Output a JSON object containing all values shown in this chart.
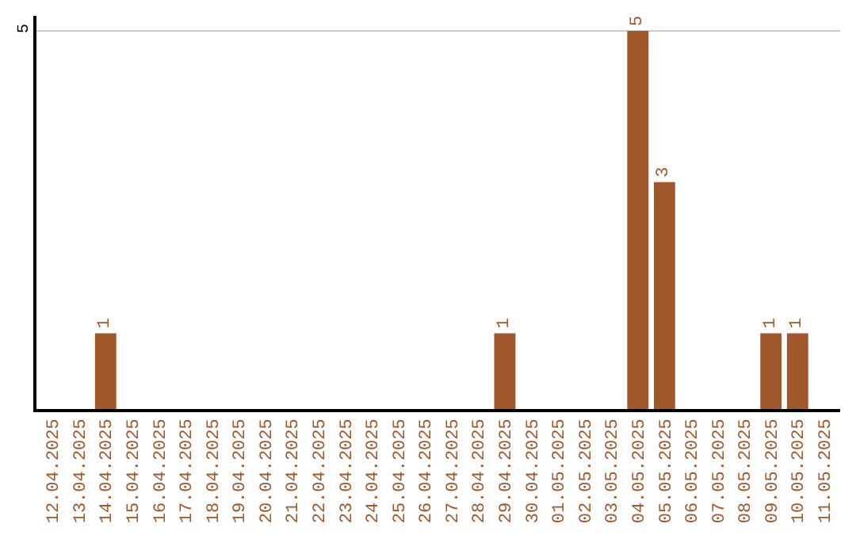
{
  "chart_data": {
    "type": "bar",
    "categories": [
      "12.04.2025",
      "13.04.2025",
      "14.04.2025",
      "15.04.2025",
      "16.04.2025",
      "17.04.2025",
      "18.04.2025",
      "19.04.2025",
      "20.04.2025",
      "21.04.2025",
      "22.04.2025",
      "23.04.2025",
      "24.04.2025",
      "25.04.2025",
      "26.04.2025",
      "27.04.2025",
      "28.04.2025",
      "29.04.2025",
      "30.04.2025",
      "01.05.2025",
      "02.05.2025",
      "03.05.2025",
      "04.05.2025",
      "05.05.2025",
      "06.05.2025",
      "07.05.2025",
      "08.05.2025",
      "09.05.2025",
      "10.05.2025",
      "11.05.2025"
    ],
    "values": [
      0,
      0,
      1,
      0,
      0,
      0,
      0,
      0,
      0,
      0,
      0,
      0,
      0,
      0,
      0,
      0,
      0,
      1,
      0,
      0,
      0,
      0,
      5,
      3,
      0,
      0,
      0,
      1,
      1,
      0
    ],
    "value_labels": [
      null,
      null,
      "1",
      null,
      null,
      null,
      null,
      null,
      null,
      null,
      null,
      null,
      null,
      null,
      null,
      null,
      null,
      "1",
      null,
      null,
      null,
      null,
      "5",
      "3",
      null,
      null,
      null,
      "1",
      "1",
      null
    ],
    "color": "#a0572a",
    "ylim": [
      0,
      5.2
    ],
    "yticks": [
      5
    ],
    "grid": "y",
    "legend": false
  }
}
